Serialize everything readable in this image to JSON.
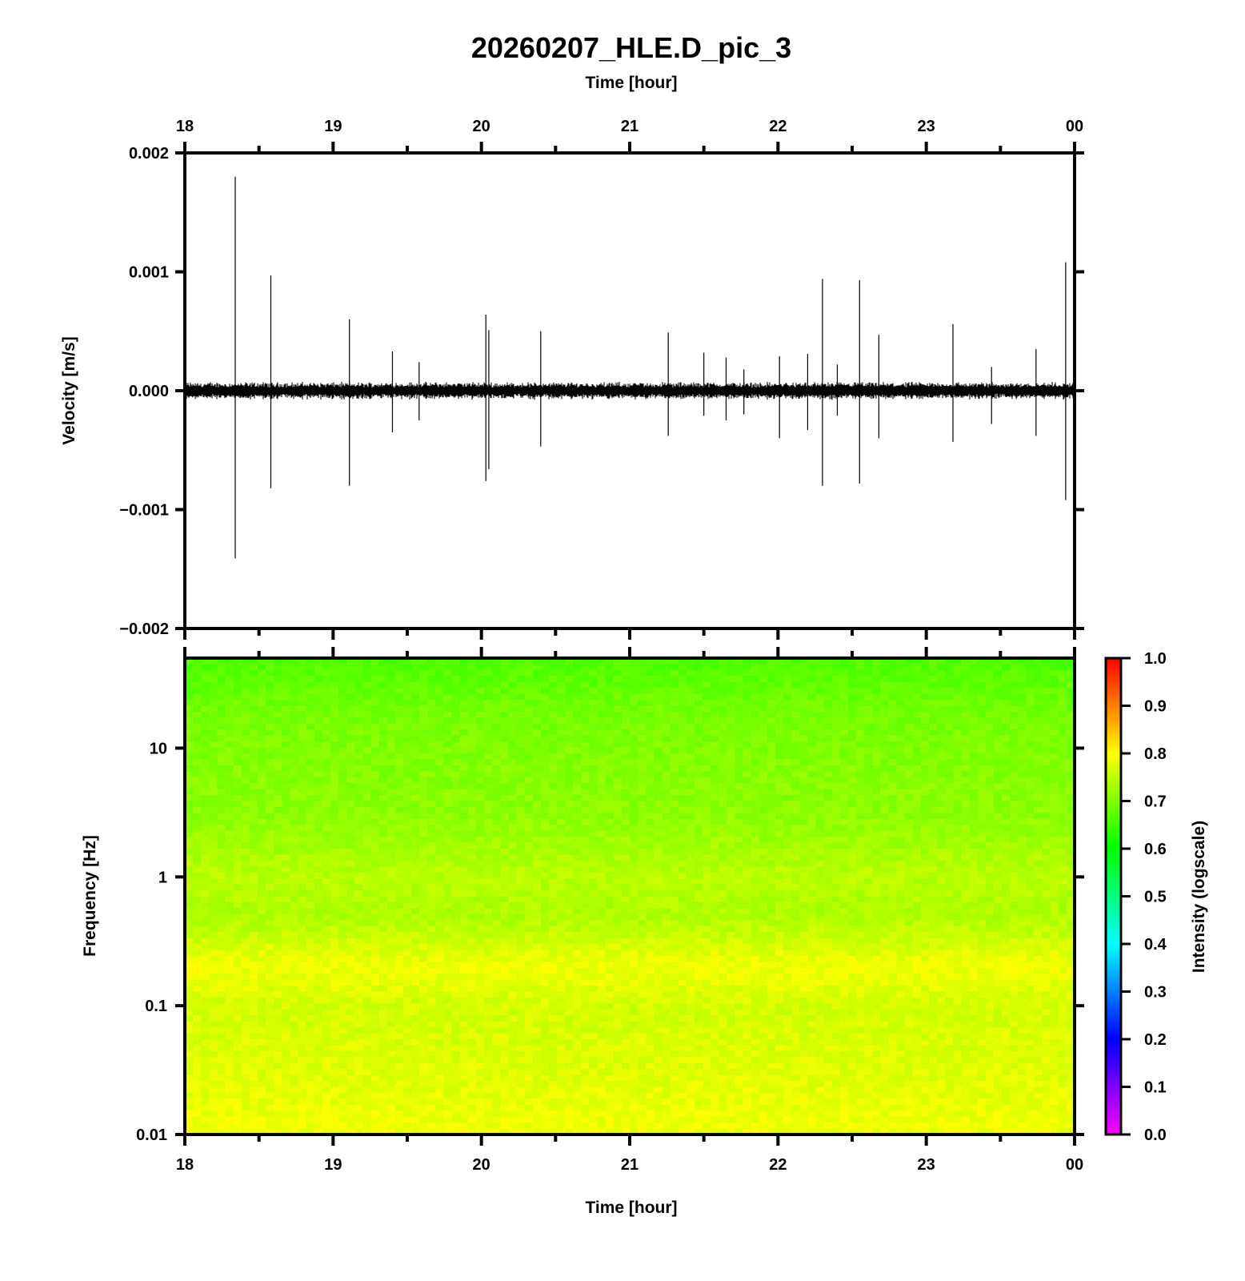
{
  "title": "20260207_HLE.D_pic_3",
  "chart_data": [
    {
      "type": "line",
      "name": "waveform",
      "xlabel": "Time [hour]",
      "ylabel": "Velocity [m/s]",
      "x_range_hours": [
        18,
        24
      ],
      "x_ticks": [
        "18",
        "19",
        "20",
        "21",
        "22",
        "23",
        "00"
      ],
      "ylim": [
        -0.002,
        0.002
      ],
      "y_ticks": [
        "0.002",
        "0.001",
        "0.000",
        "−0.001",
        "−0.002"
      ],
      "grid": false,
      "noise_amplitude": 6e-05,
      "spikes": [
        {
          "t": 18.34,
          "max": 0.0018,
          "min": -0.00141
        },
        {
          "t": 18.58,
          "max": 0.00097,
          "min": -0.00082
        },
        {
          "t": 19.11,
          "max": 0.0006,
          "min": -0.0008
        },
        {
          "t": 19.4,
          "max": 0.00033,
          "min": -0.00035
        },
        {
          "t": 19.58,
          "max": 0.00024,
          "min": -0.00025
        },
        {
          "t": 20.03,
          "max": 0.00064,
          "min": -0.00076
        },
        {
          "t": 20.05,
          "max": 0.00051,
          "min": -0.00066
        },
        {
          "t": 20.4,
          "max": 0.0005,
          "min": -0.00047
        },
        {
          "t": 21.26,
          "max": 0.00049,
          "min": -0.00038
        },
        {
          "t": 21.5,
          "max": 0.00032,
          "min": -0.00021
        },
        {
          "t": 21.65,
          "max": 0.00028,
          "min": -0.00025
        },
        {
          "t": 21.77,
          "max": 0.00018,
          "min": -0.0002
        },
        {
          "t": 22.01,
          "max": 0.00029,
          "min": -0.0004
        },
        {
          "t": 22.2,
          "max": 0.00031,
          "min": -0.00033
        },
        {
          "t": 22.3,
          "max": 0.00094,
          "min": -0.0008
        },
        {
          "t": 22.4,
          "max": 0.00022,
          "min": -0.00021
        },
        {
          "t": 22.55,
          "max": 0.00093,
          "min": -0.00078
        },
        {
          "t": 22.68,
          "max": 0.00047,
          "min": -0.0004
        },
        {
          "t": 23.18,
          "max": 0.00056,
          "min": -0.00043
        },
        {
          "t": 23.44,
          "max": 0.0002,
          "min": -0.00028
        },
        {
          "t": 23.74,
          "max": 0.00035,
          "min": -0.00038
        },
        {
          "t": 23.94,
          "max": 0.00108,
          "min": -0.00092
        }
      ]
    },
    {
      "type": "heatmap",
      "name": "spectrogram",
      "xlabel": "Time [hour]",
      "ylabel": "Frequency [Hz]",
      "x_range_hours": [
        18,
        24
      ],
      "x_ticks": [
        "18",
        "19",
        "20",
        "21",
        "22",
        "23",
        "00"
      ],
      "y_scale": "log",
      "ylim_hz": [
        0.01,
        50
      ],
      "y_ticks": [
        {
          "v": 10,
          "label": "10"
        },
        {
          "v": 1,
          "label": "1"
        },
        {
          "v": 0.1,
          "label": "0.1"
        },
        {
          "v": 0.01,
          "label": "0.01"
        }
      ],
      "colorbar": {
        "label": "Intensity (logscale)",
        "range": [
          0,
          1
        ],
        "ticks": [
          "0.0",
          "0.1",
          "0.2",
          "0.3",
          "0.4",
          "0.5",
          "0.6",
          "0.7",
          "0.8",
          "0.9",
          "1.0"
        ],
        "colormap": [
          "#ff00ff",
          "#0000ff",
          "#00ffff",
          "#00ff00",
          "#ffff00",
          "#ff0000"
        ]
      },
      "intensity_profile": [
        {
          "f": 50,
          "i": 0.66
        },
        {
          "f": 20,
          "i": 0.69
        },
        {
          "f": 10,
          "i": 0.7
        },
        {
          "f": 3,
          "i": 0.71
        },
        {
          "f": 1,
          "i": 0.745
        },
        {
          "f": 0.5,
          "i": 0.735
        },
        {
          "f": 0.2,
          "i": 0.79
        },
        {
          "f": 0.1,
          "i": 0.765
        },
        {
          "f": 0.03,
          "i": 0.775
        },
        {
          "f": 0.01,
          "i": 0.79
        }
      ]
    }
  ]
}
